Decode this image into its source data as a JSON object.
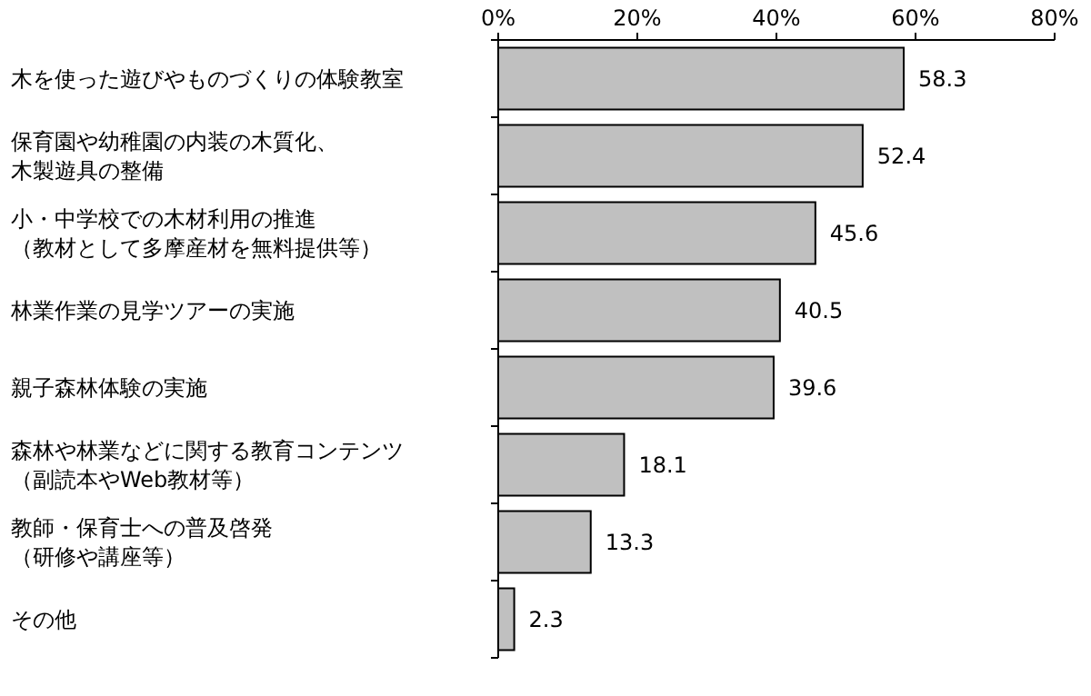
{
  "chart_data": {
    "type": "bar",
    "orientation": "horizontal",
    "categories": [
      "木を使った遊びやものづくりの体験教室",
      "保育園や幼稚園の内装の木質化、木製遊具の整備",
      "小・中学校での木材利用の推進（教材として多摩産材を無料提供等）",
      "林業作業の見学ツアーの実施",
      "親子森林体験の実施",
      "森林や林業などに関する教育コンテンツ（副読本やWeb教材等）",
      "教師・保育士への普及啓発（研修や講座等）",
      "その他"
    ],
    "values": [
      58.3,
      52.4,
      45.6,
      40.5,
      39.6,
      18.1,
      13.3,
      2.3
    ],
    "color": "#c0c0c0",
    "xlim": [
      0,
      80
    ],
    "xticks": [
      {
        "value": 0,
        "label": "0%"
      },
      {
        "value": 20,
        "label": "20%"
      },
      {
        "value": 40,
        "label": "40%"
      },
      {
        "value": 60,
        "label": "60%"
      },
      {
        "value": 80,
        "label": "80%"
      }
    ],
    "data_labels": true
  }
}
